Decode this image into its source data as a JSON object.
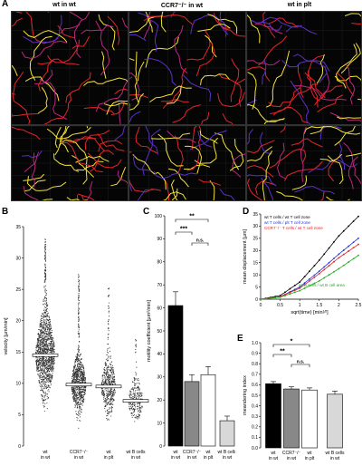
{
  "figure": {
    "panel_labels": {
      "A": "A",
      "B": "B",
      "C": "C",
      "D": "D",
      "E": "E"
    },
    "panel_a": {
      "column_titles": [
        "wt in wt",
        "CCR7⁻/⁻ in wt",
        "wt in plt"
      ],
      "rows": 2
    },
    "colors": {
      "track_yellow": "#f2e23a",
      "track_red": "#e2252b",
      "track_magenta": "#c0267f",
      "track_purple": "#5b30c8",
      "bar_black": "#000000",
      "bar_gray": "#888888",
      "bar_white": "#ffffff",
      "bar_lightgray": "#d8d8d8",
      "line_blue": "#2233dd",
      "line_red": "#dd2222",
      "line_green": "#22aa22"
    }
  },
  "chart_data": [
    {
      "panel": "B",
      "type": "scatter",
      "ylabel": "velocity [µm/min]",
      "ylim": [
        0,
        35
      ],
      "yticks": [
        0,
        5,
        10,
        15,
        20,
        25,
        30,
        35
      ],
      "categories": [
        "wt\nin wt",
        "CCR7⁻/⁻\nin wt",
        "wt\nin plt",
        "wt B cells\nin wt"
      ],
      "medians": [
        14.5,
        9.8,
        9.5,
        7.2
      ],
      "max": [
        33,
        27.5,
        25.5,
        17
      ]
    },
    {
      "panel": "C",
      "type": "bar",
      "ylabel": "motility coefficient [µm²/min]",
      "ylim": [
        0,
        100
      ],
      "yticks": [
        0,
        10,
        20,
        30,
        40,
        50,
        60,
        70,
        80,
        90,
        100
      ],
      "categories": [
        "wt\nin wt",
        "CCR7⁻/⁻\nin wt",
        "wt\nin plt",
        "wt B cells\nin wt"
      ],
      "values": [
        61,
        28,
        31,
        11
      ],
      "errors": [
        6,
        3,
        3.5,
        2
      ],
      "significance": [
        "**",
        "***",
        "n.s."
      ]
    },
    {
      "panel": "D",
      "type": "line",
      "xlabel": "sqrt(time) [min¹⁄²]",
      "ylabel": "mean displacement [µm]",
      "xlim": [
        0,
        2.5
      ],
      "ylim": [
        0,
        35
      ],
      "xticks": [
        0,
        0.5,
        1,
        1.5,
        2,
        2.5
      ],
      "yticks": [
        0,
        5,
        10,
        15,
        20,
        25,
        30,
        35
      ],
      "legend": [
        "wt T cells / wt T cell zone",
        "wt T cells / plt T cell zone",
        "CCR7⁻/⁻ T cells / wt T cell zone"
      ],
      "annotation": "wt B cells / wt B cell area",
      "series": [
        {
          "name": "wt T cells / wt T cell zone",
          "x": [
            0,
            0.5,
            1,
            1.5,
            2,
            2.5
          ],
          "y": [
            0,
            1.5,
            7,
            16,
            26,
            34
          ]
        },
        {
          "name": "wt T cells / plt T cell zone",
          "x": [
            0,
            0.5,
            1,
            1.5,
            2,
            2.5
          ],
          "y": [
            0,
            1,
            5,
            11.5,
            18.5,
            25
          ]
        },
        {
          "name": "CCR7⁻/⁻ T cells / wt T cell zone",
          "x": [
            0,
            0.5,
            1,
            1.5,
            2,
            2.5
          ],
          "y": [
            0,
            1,
            4.5,
            10.5,
            17,
            22.5
          ]
        },
        {
          "name": "wt B cells / wt B cell area",
          "x": [
            0,
            0.5,
            1,
            1.5,
            2,
            2.5
          ],
          "y": [
            0,
            0.8,
            3.5,
            7.5,
            12.5,
            18
          ]
        }
      ]
    },
    {
      "panel": "E",
      "type": "bar",
      "ylabel": "meandering index",
      "ylim": [
        0,
        1.0
      ],
      "yticks": [
        0,
        0.1,
        0.2,
        0.3,
        0.4,
        0.5,
        0.6,
        0.7,
        0.8,
        0.9,
        1.0
      ],
      "categories": [
        "wt\nin wt",
        "CCR7⁻/⁻\nin wt",
        "wt\nin plt",
        "wt B cells\nin wt"
      ],
      "values": [
        0.61,
        0.56,
        0.55,
        0.51
      ],
      "errors": [
        0.02,
        0.02,
        0.02,
        0.03
      ],
      "significance": [
        "*",
        "**",
        "n.s."
      ]
    }
  ]
}
